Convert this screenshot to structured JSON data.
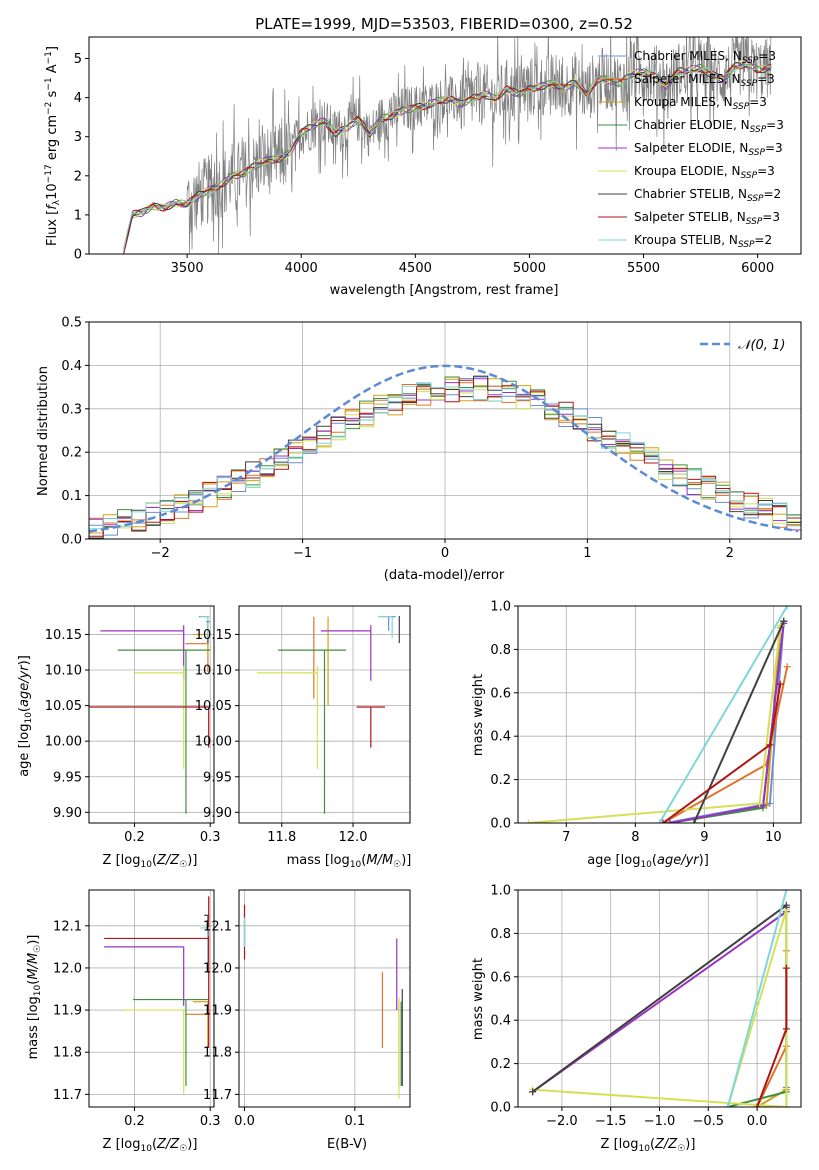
{
  "figure": {
    "title": "PLATE=1999, MJD=53503, FIBERID=0300, z=0.52"
  },
  "models": [
    {
      "name": "Chabrier MILES",
      "nssp": "3",
      "color": "#6b8fd6"
    },
    {
      "name": "Salpeter MILES",
      "nssp": "3",
      "color": "#e0732c"
    },
    {
      "name": "Kroupa MILES",
      "nssp": "3",
      "color": "#d4a017"
    },
    {
      "name": "Chabrier ELODIE",
      "nssp": "3",
      "color": "#3f8f3f"
    },
    {
      "name": "Salpeter ELODIE",
      "nssp": "3",
      "color": "#9b30c8"
    },
    {
      "name": "Kroupa ELODIE",
      "nssp": "3",
      "color": "#d4e157"
    },
    {
      "name": "Chabrier STELIB",
      "nssp": "2",
      "color": "#404040"
    },
    {
      "name": "Salpeter STELIB",
      "nssp": "3",
      "color": "#b01515"
    },
    {
      "name": "Kroupa STELIB",
      "nssp": "2",
      "color": "#7fd6db"
    }
  ],
  "chart_data": [
    {
      "id": "spectrum",
      "type": "line",
      "xlabel": "wavelength [Angstrom, rest frame]",
      "ylabel": "Flux [f_λ 10^-17 erg cm^-2 s^-1 A^-1]",
      "xlim": [
        3070,
        6190
      ],
      "ylim": [
        0,
        5.55
      ],
      "xticks": [
        3500,
        4000,
        4500,
        5000,
        5500,
        6000
      ],
      "yticks": [
        0,
        1,
        2,
        3,
        4,
        5
      ],
      "data_color": "#808080",
      "continuum": {
        "x": [
          3220,
          3260,
          3300,
          3350,
          3400,
          3450,
          3500,
          3550,
          3600,
          3650,
          3700,
          3750,
          3800,
          3850,
          3900,
          3950,
          4000,
          4050,
          4100,
          4150,
          4200,
          4250,
          4300,
          4350,
          4400,
          4450,
          4500,
          4550,
          4600,
          4650,
          4700,
          4750,
          4800,
          4850,
          4900,
          4950,
          5000,
          5050,
          5100,
          5150,
          5200,
          5250,
          5300,
          5350,
          5400,
          5450,
          5500,
          5550,
          5600,
          5650,
          5700,
          5750,
          5800,
          5850,
          5900,
          5950,
          6000,
          6050
        ],
        "y": [
          0.0,
          1.0,
          1.05,
          1.25,
          1.2,
          1.3,
          1.25,
          1.5,
          1.65,
          1.8,
          2.0,
          2.05,
          2.25,
          2.4,
          2.45,
          2.6,
          3.1,
          3.25,
          3.4,
          3.1,
          3.25,
          3.45,
          3.05,
          3.45,
          3.55,
          3.7,
          3.75,
          3.8,
          3.9,
          3.95,
          3.85,
          4.0,
          4.1,
          3.95,
          4.2,
          4.1,
          4.25,
          4.3,
          4.35,
          4.2,
          4.4,
          4.1,
          4.5,
          4.45,
          4.35,
          4.6,
          4.65,
          4.6,
          4.3,
          4.65,
          4.7,
          4.75,
          4.6,
          4.5,
          4.8,
          4.85,
          4.7,
          4.75
        ]
      },
      "legend_position": "upper right"
    },
    {
      "id": "residuals",
      "type": "line",
      "xlabel": "(data-model)/error",
      "ylabel": "Normed distribution",
      "xlim": [
        -2.5,
        2.5
      ],
      "ylim": [
        0,
        0.5
      ],
      "xticks": [
        -2,
        -1,
        0,
        1,
        2
      ],
      "yticks": [
        0.0,
        0.1,
        0.2,
        0.3,
        0.4,
        0.5
      ],
      "grid": true,
      "gaussian": {
        "label": "N(0, 1)",
        "mean": 0,
        "sigma": 1,
        "color": "#5b8ad6"
      },
      "legend_position": "upper right"
    },
    {
      "id": "age_vs_Z",
      "type": "scatter",
      "xlabel": "Z [log10(Z/Z☉)]",
      "ylabel": "age  [log10(age/yr)]",
      "xlim": [
        0.14,
        0.305
      ],
      "ylim": [
        9.885,
        10.19
      ],
      "xticks": [
        0.2,
        0.3
      ],
      "yticks": [
        9.9,
        9.95,
        10.0,
        10.05,
        10.1,
        10.15
      ],
      "grid": true,
      "points": [
        {
          "model": "Chabrier MILES",
          "x": 0.297,
          "y": 10.175,
          "xerr": [
            0.012,
            0.001
          ],
          "yerr": [
            0.02,
            0.0
          ]
        },
        {
          "model": "Salpeter MILES",
          "x": 0.297,
          "y": 10.137,
          "xerr": [
            0.03,
            0.001
          ],
          "yerr": [
            0.04,
            0.0
          ]
        },
        {
          "model": "Kroupa MILES",
          "x": 0.297,
          "y": 10.15,
          "xerr": [
            0.02,
            0.001
          ],
          "yerr": [
            0.03,
            0.0
          ]
        },
        {
          "model": "Chabrier ELODIE",
          "x": 0.268,
          "y": 10.128,
          "xerr": [
            0.09,
            0.032
          ],
          "yerr": [
            0.23,
            0.0
          ]
        },
        {
          "model": "Salpeter ELODIE",
          "x": 0.265,
          "y": 10.155,
          "xerr": [
            0.11,
            0.0
          ],
          "yerr": [
            0.07,
            0.008
          ]
        },
        {
          "model": "Kroupa ELODIE",
          "x": 0.265,
          "y": 10.096,
          "xerr": [
            0.065,
            0.0
          ],
          "yerr": [
            0.135,
            0.01
          ]
        },
        {
          "model": "Chabrier STELIB",
          "x": 0.297,
          "y": 10.168,
          "xerr": [
            0.002,
            0.002
          ],
          "yerr": [
            0.03,
            0.0
          ]
        },
        {
          "model": "Salpeter STELIB",
          "x": 0.298,
          "y": 10.048,
          "xerr": [
            0.16,
            0.0
          ],
          "yerr": [
            0.057,
            0.0
          ]
        },
        {
          "model": "Kroupa STELIB",
          "x": 0.297,
          "y": 10.175,
          "xerr": [
            0.01,
            0.002
          ],
          "yerr": [
            0.03,
            0.0
          ]
        }
      ]
    },
    {
      "id": "age_vs_mass",
      "type": "scatter",
      "xlabel": "mass [log10(M/M☉)]",
      "ylabel": "",
      "xlim": [
        11.68,
        12.16
      ],
      "ylim": [
        9.885,
        10.19
      ],
      "xticks": [
        11.8,
        12.0
      ],
      "yticks": [
        9.9,
        9.95,
        10.0,
        10.05,
        10.1,
        10.15
      ],
      "grid": true,
      "points": [
        {
          "model": "Chabrier MILES",
          "x": 12.1,
          "y": 10.175,
          "xerr": [
            0.02,
            0.02
          ],
          "yerr": [
            0.02,
            0.0
          ]
        },
        {
          "model": "Salpeter MILES",
          "x": 11.89,
          "y": 10.14,
          "xerr": [
            0.0,
            0.0
          ],
          "yerr": [
            0.08,
            0.035
          ]
        },
        {
          "model": "Kroupa MILES",
          "x": 11.93,
          "y": 10.15,
          "xerr": [
            0.0,
            0.0
          ],
          "yerr": [
            0.1,
            0.025
          ]
        },
        {
          "model": "Chabrier ELODIE",
          "x": 11.92,
          "y": 10.128,
          "xerr": [
            0.13,
            0.06
          ],
          "yerr": [
            0.23,
            0.0
          ]
        },
        {
          "model": "Salpeter ELODIE",
          "x": 12.05,
          "y": 10.155,
          "xerr": [
            0.14,
            0.0
          ],
          "yerr": [
            0.07,
            0.008
          ]
        },
        {
          "model": "Kroupa ELODIE",
          "x": 11.9,
          "y": 10.096,
          "xerr": [
            0.17,
            0.0
          ],
          "yerr": [
            0.135,
            0.01
          ]
        },
        {
          "model": "Chabrier STELIB",
          "x": 12.13,
          "y": 10.168,
          "xerr": [
            0.0,
            0.0
          ],
          "yerr": [
            0.03,
            0.008
          ]
        },
        {
          "model": "Salpeter STELIB",
          "x": 12.05,
          "y": 10.048,
          "xerr": [
            0.04,
            0.04
          ],
          "yerr": [
            0.057,
            0.0
          ]
        },
        {
          "model": "Kroupa STELIB",
          "x": 12.11,
          "y": 10.175,
          "xerr": [
            0.04,
            0.0
          ],
          "yerr": [
            0.03,
            0.0
          ]
        }
      ]
    },
    {
      "id": "mass_weight_vs_age",
      "type": "line",
      "xlabel": "age  [log10(age/yr)]",
      "ylabel": "mass weight",
      "xlim": [
        6.3,
        10.4
      ],
      "ylim": [
        0,
        1
      ],
      "xticks": [
        7,
        8,
        9,
        10
      ],
      "yticks": [
        0.0,
        0.2,
        0.4,
        0.6,
        0.8,
        1.0
      ],
      "grid": true,
      "series": [
        {
          "model": "Chabrier MILES",
          "x": [
            8.45,
            9.95,
            10.15
          ],
          "y": [
            0.0,
            0.09,
            0.93
          ]
        },
        {
          "model": "Salpeter MILES",
          "x": [
            8.4,
            9.9,
            10.2
          ],
          "y": [
            0.0,
            0.27,
            0.72
          ]
        },
        {
          "model": "Kroupa MILES",
          "x": [
            8.5,
            9.9,
            10.1
          ],
          "y": [
            0.0,
            0.08,
            0.9
          ]
        },
        {
          "model": "Chabrier ELODIE",
          "x": [
            8.5,
            9.85,
            10.15
          ],
          "y": [
            0.0,
            0.07,
            0.93
          ]
        },
        {
          "model": "Salpeter ELODIE",
          "x": [
            8.5,
            9.85,
            10.15
          ],
          "y": [
            0.0,
            0.08,
            0.92
          ]
        },
        {
          "model": "Kroupa ELODIE",
          "x": [
            6.45,
            9.8,
            10.1
          ],
          "y": [
            0.0,
            0.09,
            0.91
          ]
        },
        {
          "model": "Chabrier STELIB",
          "x": [
            8.85,
            10.15
          ],
          "y": [
            0.0,
            0.93
          ]
        },
        {
          "model": "Salpeter STELIB",
          "x": [
            8.4,
            9.95,
            10.1
          ],
          "y": [
            0.0,
            0.36,
            0.64
          ]
        },
        {
          "model": "Kroupa STELIB",
          "x": [
            8.35,
            10.2
          ],
          "y": [
            0.0,
            1.0
          ]
        }
      ]
    },
    {
      "id": "mass_vs_Z",
      "type": "scatter",
      "xlabel": "Z [log10(Z/Z☉)]",
      "ylabel": "mass [log10(M/M☉)]",
      "xlim": [
        0.14,
        0.305
      ],
      "ylim": [
        11.67,
        12.185
      ],
      "xticks": [
        0.2,
        0.3
      ],
      "yticks": [
        11.7,
        11.8,
        11.9,
        12.0,
        12.1
      ],
      "grid": true,
      "points": [
        {
          "model": "Chabrier MILES",
          "x": 0.297,
          "y": 12.095,
          "xerr": [
            0.005,
            0.0
          ],
          "yerr": [
            0.1,
            0.0
          ]
        },
        {
          "model": "Salpeter MILES",
          "x": 0.297,
          "y": 11.89,
          "xerr": [
            0.03,
            0.0
          ],
          "yerr": [
            0.08,
            0.0
          ]
        },
        {
          "model": "Kroupa MILES",
          "x": 0.297,
          "y": 11.92,
          "xerr": [
            0.02,
            0.0
          ],
          "yerr": [
            0.1,
            0.0
          ]
        },
        {
          "model": "Chabrier ELODIE",
          "x": 0.268,
          "y": 11.925,
          "xerr": [
            0.07,
            0.03
          ],
          "yerr": [
            0.205,
            0.0
          ]
        },
        {
          "model": "Salpeter ELODIE",
          "x": 0.265,
          "y": 12.05,
          "xerr": [
            0.105,
            0.0
          ],
          "yerr": [
            0.14,
            0.0
          ]
        },
        {
          "model": "Kroupa ELODIE",
          "x": 0.265,
          "y": 11.9,
          "xerr": [
            0.08,
            0.0
          ],
          "yerr": [
            0.2,
            0.0
          ]
        },
        {
          "model": "Chabrier STELIB",
          "x": 0.297,
          "y": 12.125,
          "xerr": [
            0.005,
            0.002
          ],
          "yerr": [
            0.05,
            0.0
          ]
        },
        {
          "model": "Salpeter STELIB",
          "x": 0.298,
          "y": 12.07,
          "xerr": [
            0.138,
            0.0
          ],
          "yerr": [
            0.26,
            0.1
          ]
        },
        {
          "model": "Kroupa STELIB",
          "x": 0.297,
          "y": 12.095,
          "xerr": [
            0.01,
            0.002
          ],
          "yerr": [
            0.02,
            0.0
          ]
        }
      ]
    },
    {
      "id": "mass_vs_ebv",
      "type": "scatter",
      "xlabel": "E(B-V)",
      "ylabel": "",
      "xlim": [
        -0.005,
        0.15
      ],
      "ylim": [
        11.67,
        12.185
      ],
      "xticks": [
        0.0,
        0.1
      ],
      "yticks": [
        11.7,
        11.8,
        11.9,
        12.0,
        12.1
      ],
      "grid": true,
      "points": [
        {
          "model": "Chabrier MILES",
          "x": 0.0,
          "y": 12.1,
          "xerr": [
            0,
            0
          ],
          "yerr": [
            0.05,
            0.03
          ]
        },
        {
          "model": "Salpeter MILES",
          "x": 0.125,
          "y": 11.89,
          "xerr": [
            0,
            0
          ],
          "yerr": [
            0.08,
            0.1
          ]
        },
        {
          "model": "Kroupa MILES",
          "x": 0.14,
          "y": 11.92,
          "xerr": [
            0,
            0
          ],
          "yerr": [
            0.2,
            0.0
          ]
        },
        {
          "model": "Chabrier ELODIE",
          "x": 0.142,
          "y": 11.92,
          "xerr": [
            0,
            0
          ],
          "yerr": [
            0.2,
            0.0
          ]
        },
        {
          "model": "Salpeter ELODIE",
          "x": 0.138,
          "y": 11.95,
          "xerr": [
            0,
            0
          ],
          "yerr": [
            0.05,
            0.12
          ]
        },
        {
          "model": "Kroupa ELODIE",
          "x": 0.14,
          "y": 11.75,
          "xerr": [
            0,
            0
          ],
          "yerr": [
            0.06,
            0.18
          ]
        },
        {
          "model": "Chabrier STELIB",
          "x": 0.143,
          "y": 11.95,
          "xerr": [
            0,
            0
          ],
          "yerr": [
            0.23,
            0.0
          ]
        },
        {
          "model": "Salpeter STELIB",
          "x": 0.0,
          "y": 12.08,
          "xerr": [
            0,
            0
          ],
          "yerr": [
            0.06,
            0.07
          ]
        },
        {
          "model": "Kroupa STELIB",
          "x": 0.0,
          "y": 12.1,
          "xerr": [
            0,
            0
          ],
          "yerr": [
            0.05,
            0.02
          ]
        }
      ]
    },
    {
      "id": "mass_weight_vs_Z",
      "type": "line",
      "xlabel": "Z [log10(Z/Z☉)]",
      "ylabel": "mass weight",
      "xlim": [
        -2.45,
        0.45
      ],
      "ylim": [
        0,
        1
      ],
      "xticks": [
        -2.0,
        -1.5,
        -1.0,
        -0.5,
        0.0
      ],
      "yticks": [
        0.0,
        0.2,
        0.4,
        0.6,
        0.8,
        1.0
      ],
      "grid": true,
      "series": [
        {
          "model": "Chabrier MILES",
          "x": [
            0.3,
            0.3,
            0.3
          ],
          "y": [
            0.0,
            0.09,
            0.92
          ]
        },
        {
          "model": "Salpeter MILES",
          "x": [
            0.0,
            0.3,
            0.3
          ],
          "y": [
            0.0,
            0.28,
            0.72
          ]
        },
        {
          "model": "Kroupa MILES",
          "x": [
            0.0,
            0.3,
            0.3
          ],
          "y": [
            0.0,
            0.08,
            0.9
          ]
        },
        {
          "model": "Chabrier ELODIE",
          "x": [
            -0.3,
            0.3,
            0.3
          ],
          "y": [
            0.0,
            0.07,
            0.92
          ]
        },
        {
          "model": "Salpeter ELODIE",
          "x": [
            -2.3,
            0.3,
            0.3
          ],
          "y": [
            0.07,
            0.9,
            0.92
          ]
        },
        {
          "model": "Kroupa ELODIE",
          "x": [
            -2.3,
            0.3,
            0.3,
            -0.3
          ],
          "y": [
            0.08,
            0.0,
            0.91,
            0.0
          ]
        },
        {
          "model": "Chabrier STELIB",
          "x": [
            -2.3,
            0.3
          ],
          "y": [
            0.07,
            0.93
          ]
        },
        {
          "model": "Salpeter STELIB",
          "x": [
            0.0,
            0.3,
            0.3
          ],
          "y": [
            0.0,
            0.36,
            0.64
          ]
        },
        {
          "model": "Kroupa STELIB",
          "x": [
            -0.3,
            0.3
          ],
          "y": [
            0.0,
            1.0
          ]
        }
      ]
    }
  ]
}
